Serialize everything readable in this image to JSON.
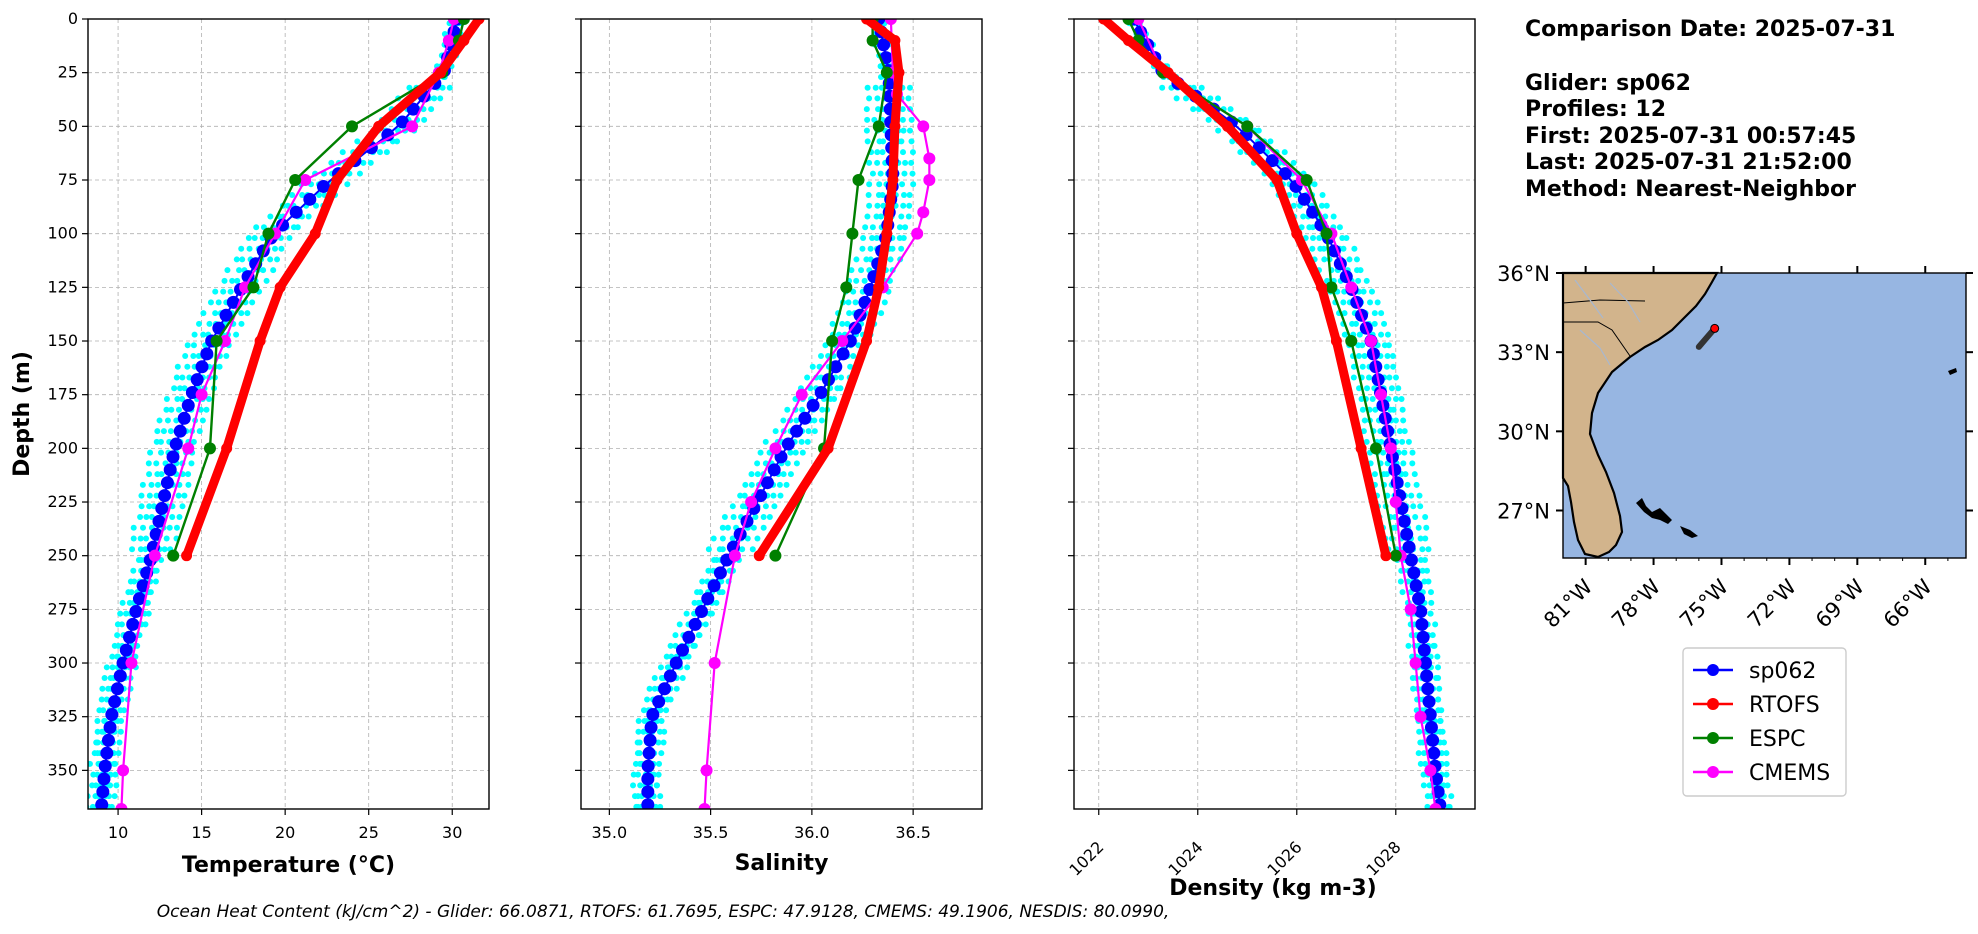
{
  "info": {
    "comparison_date": "Comparison Date: 2025-07-31",
    "glider": "Glider: sp062",
    "profiles": "Profiles: 12",
    "first": "First: 2025-07-31 00:57:45",
    "last": "Last: 2025-07-31 21:52:00",
    "method": "Method: Nearest-Neighbor"
  },
  "footer": "Ocean Heat Content (kJ/cm^2) - Glider: 66.0871,  RTOFS: 61.7695,  ESPC: 47.9128,  CMEMS: 49.1906,  NESDIS: 80.0990,",
  "colors": {
    "sp062": "#0000ff",
    "rtofs": "#ff0000",
    "espc": "#008000",
    "cmems": "#ff00ff",
    "profiles": "#00ffff",
    "land": "#d2b48c",
    "ocean": "#97b6e2"
  },
  "chart_data": [
    {
      "type": "line",
      "xlabel": "Temperature (°C)",
      "ylabel": "Depth (m)",
      "xlim": [
        8.2,
        32.2
      ],
      "ylim": [
        368,
        0
      ],
      "grid": true,
      "xticks": [
        "10",
        "15",
        "20",
        "25",
        "30"
      ],
      "yticks": [
        "0",
        "25",
        "50",
        "75",
        "100",
        "125",
        "150",
        "175",
        "200",
        "225",
        "250",
        "275",
        "300",
        "325",
        "350"
      ],
      "series": [
        {
          "name": "sp062",
          "depth": [
            0,
            25,
            50,
            75,
            100,
            125,
            150,
            175,
            200,
            225,
            250,
            275,
            300,
            325,
            350,
            368
          ],
          "values": [
            30.3,
            29.5,
            26.8,
            22.7,
            19.3,
            17.4,
            15.6,
            14.4,
            13.4,
            12.7,
            12.0,
            11.1,
            10.3,
            9.6,
            9.2,
            9.0
          ]
        },
        {
          "name": "RTOFS",
          "depth": [
            0,
            10,
            25,
            50,
            75,
            100,
            125,
            150,
            200,
            250
          ],
          "values": [
            31.6,
            30.7,
            29.3,
            25.6,
            23.1,
            21.8,
            19.7,
            18.5,
            16.5,
            14.1
          ]
        },
        {
          "name": "ESPC",
          "depth": [
            0,
            10,
            25,
            50,
            75,
            100,
            125,
            150,
            200,
            250
          ],
          "values": [
            30.7,
            30.4,
            29.4,
            24.0,
            20.6,
            19.0,
            18.1,
            15.9,
            15.5,
            13.3
          ]
        },
        {
          "name": "CMEMS",
          "depth": [
            0,
            10,
            25,
            50,
            75,
            100,
            125,
            150,
            175,
            200,
            250,
            300,
            350,
            368
          ],
          "values": [
            30.1,
            29.8,
            29.2,
            27.6,
            21.2,
            19.4,
            17.6,
            16.4,
            15.0,
            14.2,
            12.2,
            10.8,
            10.3,
            10.2
          ]
        }
      ]
    },
    {
      "type": "line",
      "xlabel": "Salinity",
      "xlim": [
        34.86,
        36.84
      ],
      "ylim": [
        368,
        0
      ],
      "grid": true,
      "xticks": [
        "35.0",
        "35.5",
        "36.0",
        "36.5"
      ],
      "series": [
        {
          "name": "sp062",
          "depth": [
            0,
            25,
            50,
            75,
            100,
            125,
            150,
            175,
            200,
            225,
            250,
            275,
            300,
            325,
            350,
            368
          ],
          "values": [
            36.33,
            36.38,
            36.39,
            36.4,
            36.37,
            36.29,
            36.19,
            36.04,
            35.87,
            35.73,
            35.59,
            35.46,
            35.33,
            35.21,
            35.19,
            35.19
          ]
        },
        {
          "name": "RTOFS",
          "depth": [
            0,
            10,
            25,
            50,
            75,
            100,
            125,
            150,
            200,
            250
          ],
          "values": [
            36.27,
            36.41,
            36.43,
            36.41,
            36.4,
            36.37,
            36.33,
            36.27,
            36.08,
            35.74
          ]
        },
        {
          "name": "ESPC",
          "depth": [
            0,
            10,
            25,
            50,
            75,
            100,
            125,
            150,
            200,
            250
          ],
          "values": [
            36.3,
            36.3,
            36.37,
            36.33,
            36.23,
            36.2,
            36.17,
            36.1,
            36.06,
            35.82
          ]
        },
        {
          "name": "CMEMS",
          "depth": [
            0,
            25,
            35,
            50,
            65,
            75,
            90,
            100,
            125,
            150,
            175,
            200,
            225,
            250,
            300,
            350,
            368
          ],
          "values": [
            36.39,
            36.4,
            36.42,
            36.55,
            36.58,
            36.58,
            36.55,
            36.52,
            36.35,
            36.15,
            35.95,
            35.82,
            35.7,
            35.62,
            35.52,
            35.48,
            35.47
          ]
        }
      ]
    },
    {
      "type": "line",
      "xlabel": "Density (kg m-3)",
      "xlim": [
        1021.5,
        1029.6
      ],
      "ylim": [
        368,
        0
      ],
      "grid": true,
      "xticks": [
        "1022",
        "1024",
        "1026",
        "1028"
      ],
      "series": [
        {
          "name": "sp062",
          "depth": [
            0,
            25,
            50,
            75,
            100,
            125,
            150,
            175,
            200,
            225,
            250,
            275,
            300,
            325,
            350,
            368
          ],
          "values": [
            1022.7,
            1023.3,
            1024.8,
            1025.9,
            1026.6,
            1027.1,
            1027.5,
            1027.7,
            1027.9,
            1028.1,
            1028.3,
            1028.5,
            1028.6,
            1028.7,
            1028.8,
            1028.9
          ]
        },
        {
          "name": "RTOFS",
          "depth": [
            0,
            10,
            25,
            50,
            75,
            100,
            125,
            150,
            200,
            250
          ],
          "values": [
            1022.1,
            1022.6,
            1023.4,
            1024.6,
            1025.6,
            1026.0,
            1026.5,
            1026.8,
            1027.3,
            1027.8
          ]
        },
        {
          "name": "ESPC",
          "depth": [
            0,
            10,
            25,
            50,
            75,
            100,
            125,
            150,
            200,
            250
          ],
          "values": [
            1022.6,
            1022.8,
            1023.3,
            1025.0,
            1026.2,
            1026.6,
            1026.7,
            1027.1,
            1027.6,
            1028.0
          ]
        },
        {
          "name": "CMEMS",
          "depth": [
            0,
            25,
            50,
            75,
            100,
            125,
            150,
            175,
            200,
            225,
            250,
            275,
            300,
            325,
            350,
            368
          ],
          "values": [
            1022.8,
            1023.3,
            1025.0,
            1026.1,
            1026.7,
            1027.1,
            1027.5,
            1027.7,
            1027.9,
            1028.0,
            1028.1,
            1028.3,
            1028.4,
            1028.5,
            1028.7,
            1028.8
          ]
        }
      ]
    }
  ],
  "map": {
    "lon_ticks": [
      "81°W",
      "78°W",
      "75°W",
      "72°W",
      "69°W",
      "66°W"
    ],
    "lat_ticks": [
      "36°N",
      "33°N",
      "30°N",
      "27°N"
    ],
    "lon_range": [
      -82.0,
      -64.2
    ],
    "lat_range": [
      25.2,
      36.0
    ],
    "glider_positions": [
      [
        -76.0,
        33.2
      ],
      [
        -75.7,
        33.5
      ],
      [
        -75.4,
        33.8
      ],
      [
        -75.3,
        33.9
      ]
    ]
  },
  "legend": {
    "entries": [
      "sp062",
      "RTOFS",
      "ESPC",
      "CMEMS"
    ]
  }
}
